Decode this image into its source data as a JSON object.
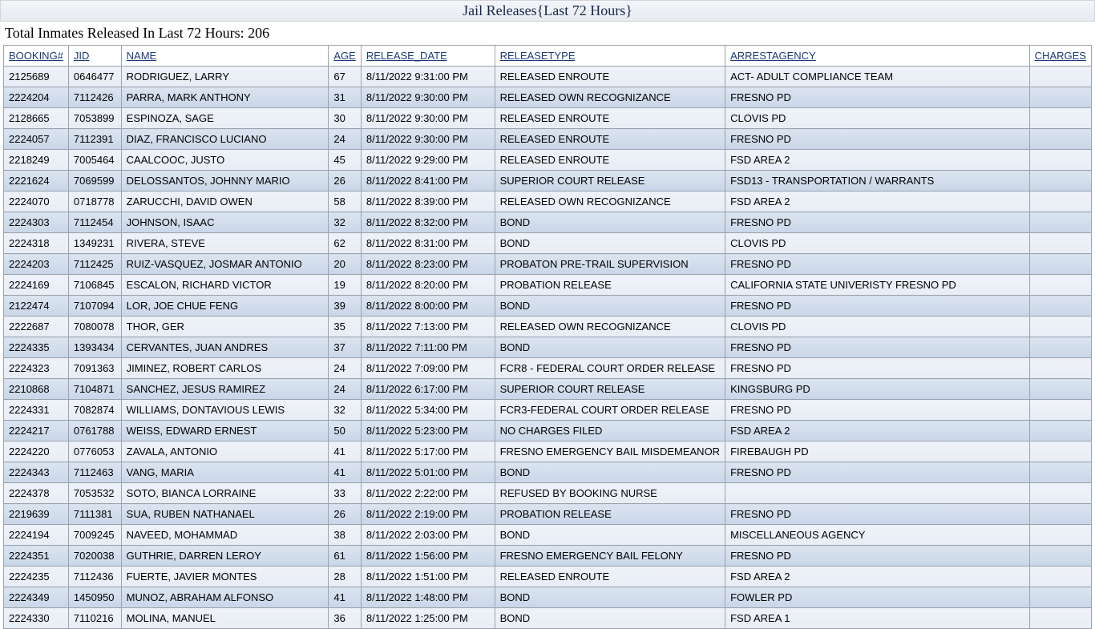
{
  "header": {
    "title": "Jail Releases{Last 72 Hours}",
    "summary_prefix": "Total Inmates Released In Last 72 Hours: ",
    "total_released": "206"
  },
  "table": {
    "columns": [
      {
        "key": "booking",
        "label": "BOOKING#"
      },
      {
        "key": "jid",
        "label": "JID"
      },
      {
        "key": "name",
        "label": "NAME"
      },
      {
        "key": "age",
        "label": "AGE"
      },
      {
        "key": "rdate",
        "label": "RELEASE_DATE"
      },
      {
        "key": "rtype",
        "label": "RELEASETYPE"
      },
      {
        "key": "agency",
        "label": "ARRESTAGENCY"
      },
      {
        "key": "charges",
        "label": "CHARGES"
      }
    ],
    "rows": [
      {
        "booking": "2125689",
        "jid": "0646477",
        "name": "RODRIGUEZ, LARRY",
        "age": "67",
        "rdate": "8/11/2022 9:31:00 PM",
        "rtype": "RELEASED ENROUTE",
        "agency": "ACT- ADULT COMPLIANCE TEAM",
        "charges": ""
      },
      {
        "booking": "2224204",
        "jid": "7112426",
        "name": "PARRA, MARK ANTHONY",
        "age": "31",
        "rdate": "8/11/2022 9:30:00 PM",
        "rtype": "RELEASED OWN RECOGNIZANCE",
        "agency": "FRESNO PD",
        "charges": ""
      },
      {
        "booking": "2128665",
        "jid": "7053899",
        "name": "ESPINOZA, SAGE",
        "age": "30",
        "rdate": "8/11/2022 9:30:00 PM",
        "rtype": "RELEASED ENROUTE",
        "agency": "CLOVIS PD",
        "charges": ""
      },
      {
        "booking": "2224057",
        "jid": "7112391",
        "name": "DIAZ, FRANCISCO LUCIANO",
        "age": "24",
        "rdate": "8/11/2022 9:30:00 PM",
        "rtype": "RELEASED ENROUTE",
        "agency": "FRESNO PD",
        "charges": ""
      },
      {
        "booking": "2218249",
        "jid": "7005464",
        "name": "CAALCOOC, JUSTO",
        "age": "45",
        "rdate": "8/11/2022 9:29:00 PM",
        "rtype": "RELEASED ENROUTE",
        "agency": "FSD AREA 2",
        "charges": ""
      },
      {
        "booking": "2221624",
        "jid": "7069599",
        "name": "DELOSSANTOS, JOHNNY MARIO",
        "age": "26",
        "rdate": "8/11/2022 8:41:00 PM",
        "rtype": "SUPERIOR COURT RELEASE",
        "agency": "FSD13 - TRANSPORTATION / WARRANTS",
        "charges": ""
      },
      {
        "booking": "2224070",
        "jid": "0718778",
        "name": "ZARUCCHI, DAVID OWEN",
        "age": "58",
        "rdate": "8/11/2022 8:39:00 PM",
        "rtype": "RELEASED OWN RECOGNIZANCE",
        "agency": "FSD AREA 2",
        "charges": ""
      },
      {
        "booking": "2224303",
        "jid": "7112454",
        "name": "JOHNSON, ISAAC",
        "age": "32",
        "rdate": "8/11/2022 8:32:00 PM",
        "rtype": "BOND",
        "agency": "FRESNO PD",
        "charges": ""
      },
      {
        "booking": "2224318",
        "jid": "1349231",
        "name": "RIVERA, STEVE",
        "age": "62",
        "rdate": "8/11/2022 8:31:00 PM",
        "rtype": "BOND",
        "agency": "CLOVIS PD",
        "charges": ""
      },
      {
        "booking": "2224203",
        "jid": "7112425",
        "name": "RUIZ-VASQUEZ, JOSMAR ANTONIO",
        "age": "20",
        "rdate": "8/11/2022 8:23:00 PM",
        "rtype": "PROBATON PRE-TRAIL SUPERVISION",
        "agency": "FRESNO PD",
        "charges": ""
      },
      {
        "booking": "2224169",
        "jid": "7106845",
        "name": "ESCALON, RICHARD VICTOR",
        "age": "19",
        "rdate": "8/11/2022 8:20:00 PM",
        "rtype": "PROBATION RELEASE",
        "agency": "CALIFORNIA STATE UNIVERISTY FRESNO PD",
        "charges": ""
      },
      {
        "booking": "2122474",
        "jid": "7107094",
        "name": "LOR, JOE CHUE FENG",
        "age": "39",
        "rdate": "8/11/2022 8:00:00 PM",
        "rtype": "BOND",
        "agency": "FRESNO PD",
        "charges": ""
      },
      {
        "booking": "2222687",
        "jid": "7080078",
        "name": "THOR, GER",
        "age": "35",
        "rdate": "8/11/2022 7:13:00 PM",
        "rtype": "RELEASED OWN RECOGNIZANCE",
        "agency": "CLOVIS PD",
        "charges": ""
      },
      {
        "booking": "2224335",
        "jid": "1393434",
        "name": "CERVANTES, JUAN ANDRES",
        "age": "37",
        "rdate": "8/11/2022 7:11:00 PM",
        "rtype": "BOND",
        "agency": "FRESNO PD",
        "charges": ""
      },
      {
        "booking": "2224323",
        "jid": "7091363",
        "name": "JIMINEZ, ROBERT CARLOS",
        "age": "24",
        "rdate": "8/11/2022 7:09:00 PM",
        "rtype": "FCR8 - FEDERAL COURT ORDER RELEASE",
        "agency": "FRESNO PD",
        "charges": ""
      },
      {
        "booking": "2210868",
        "jid": "7104871",
        "name": "SANCHEZ, JESUS RAMIREZ",
        "age": "24",
        "rdate": "8/11/2022 6:17:00 PM",
        "rtype": "SUPERIOR COURT RELEASE",
        "agency": "KINGSBURG PD",
        "charges": ""
      },
      {
        "booking": "2224331",
        "jid": "7082874",
        "name": "WILLIAMS, DONTAVIOUS LEWIS",
        "age": "32",
        "rdate": "8/11/2022 5:34:00 PM",
        "rtype": "FCR3-FEDERAL COURT ORDER RELEASE",
        "agency": "FRESNO PD",
        "charges": ""
      },
      {
        "booking": "2224217",
        "jid": "0761788",
        "name": "WEISS, EDWARD ERNEST",
        "age": "50",
        "rdate": "8/11/2022 5:23:00 PM",
        "rtype": "NO CHARGES FILED",
        "agency": "FSD AREA 2",
        "charges": ""
      },
      {
        "booking": "2224220",
        "jid": "0776053",
        "name": "ZAVALA, ANTONIO",
        "age": "41",
        "rdate": "8/11/2022 5:17:00 PM",
        "rtype": "FRESNO EMERGENCY BAIL MISDEMEANOR",
        "agency": "FIREBAUGH PD",
        "charges": ""
      },
      {
        "booking": "2224343",
        "jid": "7112463",
        "name": "VANG, MARIA",
        "age": "41",
        "rdate": "8/11/2022 5:01:00 PM",
        "rtype": "BOND",
        "agency": "FRESNO PD",
        "charges": ""
      },
      {
        "booking": "2224378",
        "jid": "7053532",
        "name": "SOTO, BIANCA LORRAINE",
        "age": "33",
        "rdate": "8/11/2022 2:22:00 PM",
        "rtype": "REFUSED BY BOOKING NURSE",
        "agency": "",
        "charges": ""
      },
      {
        "booking": "2219639",
        "jid": "7111381",
        "name": "SUA, RUBEN NATHANAEL",
        "age": "26",
        "rdate": "8/11/2022 2:19:00 PM",
        "rtype": "PROBATION RELEASE",
        "agency": "FRESNO PD",
        "charges": ""
      },
      {
        "booking": "2224194",
        "jid": "7009245",
        "name": "NAVEED, MOHAMMAD",
        "age": "38",
        "rdate": "8/11/2022 2:03:00 PM",
        "rtype": "BOND",
        "agency": "MISCELLANEOUS AGENCY",
        "charges": ""
      },
      {
        "booking": "2224351",
        "jid": "7020038",
        "name": "GUTHRIE, DARREN LEROY",
        "age": "61",
        "rdate": "8/11/2022 1:56:00 PM",
        "rtype": "FRESNO EMERGENCY BAIL FELONY",
        "agency": "FRESNO PD",
        "charges": ""
      },
      {
        "booking": "2224235",
        "jid": "7112436",
        "name": "FUERTE, JAVIER MONTES",
        "age": "28",
        "rdate": "8/11/2022 1:51:00 PM",
        "rtype": "RELEASED ENROUTE",
        "agency": "FSD AREA 2",
        "charges": ""
      },
      {
        "booking": "2224349",
        "jid": "1450950",
        "name": "MUNOZ, ABRAHAM ALFONSO",
        "age": "41",
        "rdate": "8/11/2022 1:48:00 PM",
        "rtype": "BOND",
        "agency": "FOWLER PD",
        "charges": ""
      },
      {
        "booking": "2224330",
        "jid": "7110216",
        "name": "MOLINA, MANUEL",
        "age": "36",
        "rdate": "8/11/2022 1:25:00 PM",
        "rtype": "BOND",
        "agency": "FSD AREA 1",
        "charges": ""
      }
    ]
  }
}
